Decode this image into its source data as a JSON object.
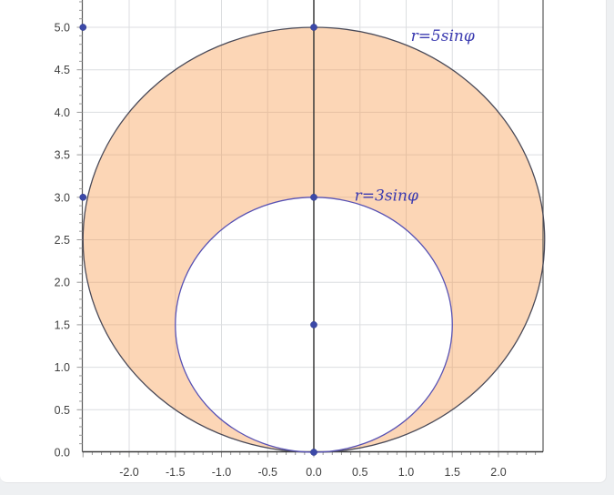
{
  "page": {
    "background_color": "#eef0f2",
    "card_color": "#ffffff"
  },
  "chart_data": {
    "type": "area",
    "title": "",
    "description": "Shaded region between two tangent circles given by polar curves r=3sinφ and r=5sinφ, both tangent to the x-axis at the origin",
    "curves": [
      {
        "label": "r=5sinφ",
        "shape": "circle",
        "center": [
          0,
          2.5
        ],
        "radius": 2.5,
        "stroke_color": "#4a4a58",
        "label_pos": [
          1.05,
          4.84
        ]
      },
      {
        "label": "r=3sinφ",
        "shape": "circle",
        "center": [
          0,
          1.5
        ],
        "radius": 1.5,
        "stroke_color": "#5852b4",
        "label_pos": [
          0.44,
          2.96
        ]
      }
    ],
    "shaded_region": "between r=3sinφ and r=5sinφ",
    "region_fill_color": "rgba(246,148,62,0.38)",
    "points": [
      [
        -2.5,
        5
      ],
      [
        0,
        5
      ],
      [
        -2.5,
        3
      ],
      [
        0,
        3
      ],
      [
        0,
        1.5
      ],
      [
        0,
        0
      ]
    ],
    "point_color": "#3c49a8",
    "x_ticks": [
      -2,
      -1.5,
      -1,
      -0.5,
      0,
      0.5,
      1,
      1.5,
      2
    ],
    "x_tick_labels": [
      "-2.0",
      "-1.5",
      "-1.0",
      "-0.5",
      "0.0",
      "0.5",
      "1.0",
      "1.5",
      "2.0"
    ],
    "y_ticks": [
      0,
      0.5,
      1,
      1.5,
      2,
      2.5,
      3,
      3.5,
      4,
      4.5,
      5
    ],
    "y_tick_labels": [
      "0.0",
      "0.5",
      "1.0",
      "1.5",
      "2.0",
      "2.5",
      "3.0",
      "3.5",
      "4.0",
      "4.5",
      "5.0"
    ],
    "xlim": [
      -2.51,
      2.48
    ],
    "ylim": [
      0,
      5.32
    ],
    "minor_tick_step": 0.1,
    "grid": true,
    "grid_color": "#dcdee0",
    "axis_color": "#3a3a3a",
    "frame_color": "#5a5a5a",
    "minor_tick_color": "#9a9a9a",
    "tick_label_color": "#3f3f3f",
    "curve_label_color": "#3b3bb0",
    "legend_position": "none"
  }
}
